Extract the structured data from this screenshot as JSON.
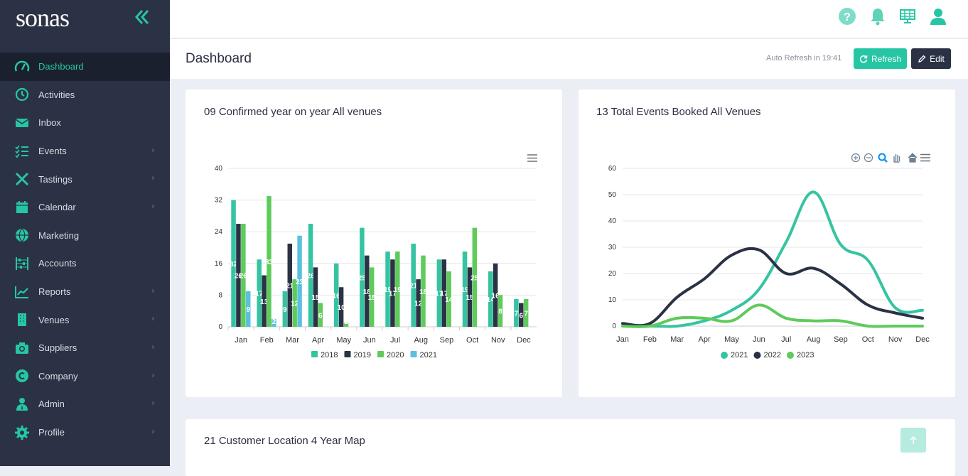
{
  "app": {
    "logo_text": "sonas"
  },
  "colors": {
    "accent": "#26c6a4",
    "sidebar_bg": "#2b3245",
    "dark": "#2b3245",
    "s2018": "#35c4a1",
    "s2019": "#2b3245",
    "s2020": "#5ecb5b",
    "s2021": "#5bc0de"
  },
  "sidebar": {
    "items": [
      {
        "label": "Dashboard",
        "icon": "speedometer-icon",
        "active": true,
        "has_children": false
      },
      {
        "label": "Activities",
        "icon": "history-icon",
        "has_children": false
      },
      {
        "label": "Inbox",
        "icon": "envelope-icon",
        "has_children": false
      },
      {
        "label": "Events",
        "icon": "checklist-icon",
        "has_children": true
      },
      {
        "label": "Tastings",
        "icon": "utensils-icon",
        "has_children": true
      },
      {
        "label": "Calendar",
        "icon": "calendar-icon",
        "has_children": true
      },
      {
        "label": "Marketing",
        "icon": "globe-icon",
        "has_children": false
      },
      {
        "label": "Accounts",
        "icon": "abacus-icon",
        "has_children": false
      },
      {
        "label": "Reports",
        "icon": "chart-line-icon",
        "has_children": true
      },
      {
        "label": "Venues",
        "icon": "building-icon",
        "has_children": true
      },
      {
        "label": "Suppliers",
        "icon": "camera-icon",
        "has_children": true
      },
      {
        "label": "Company",
        "icon": "copyright-icon",
        "has_children": true
      },
      {
        "label": "Admin",
        "icon": "user-tie-icon",
        "has_children": true
      },
      {
        "label": "Profile",
        "icon": "cog-icon",
        "has_children": true
      }
    ]
  },
  "header": {
    "title": "Dashboard",
    "auto_refresh": "Auto Refresh in 19:41",
    "refresh_label": "Refresh",
    "edit_label": "Edit"
  },
  "cards": {
    "bar_title": "09 Confirmed year on year All venues",
    "line_title": "13 Total Events Booked All Venues",
    "map_title": "21 Customer Location 4 Year Map"
  },
  "chart_data": [
    {
      "type": "bar",
      "title": "09 Confirmed year on year All venues",
      "categories": [
        "Jan",
        "Feb",
        "Mar",
        "Apr",
        "May",
        "Jun",
        "Jul",
        "Aug",
        "Sep",
        "Oct",
        "Nov",
        "Dec"
      ],
      "ylim": [
        0,
        40
      ],
      "yticks": [
        0,
        8,
        16,
        24,
        32,
        40
      ],
      "grid": true,
      "legend_position": "bottom",
      "series": [
        {
          "name": "2018",
          "values": [
            32,
            17,
            9,
            26,
            16,
            25,
            19,
            21,
            17,
            19,
            14,
            7
          ]
        },
        {
          "name": "2019",
          "values": [
            26,
            13,
            21,
            15,
            10,
            18,
            17,
            12,
            17,
            15,
            16,
            6
          ]
        },
        {
          "name": "2020",
          "values": [
            26,
            33,
            12,
            6,
            1,
            15,
            19,
            18,
            14,
            25,
            8,
            7
          ]
        },
        {
          "name": "2021",
          "values": [
            9,
            2,
            23,
            0,
            0,
            0,
            0,
            0,
            0,
            0,
            0,
            0
          ]
        }
      ]
    },
    {
      "type": "line",
      "title": "13 Total Events Booked All Venues",
      "categories": [
        "Jan",
        "Feb",
        "Mar",
        "Apr",
        "May",
        "Jun",
        "Jul",
        "Aug",
        "Sep",
        "Oct",
        "Nov",
        "Dec"
      ],
      "ylim": [
        0,
        60
      ],
      "yticks": [
        0,
        10,
        20,
        30,
        40,
        50,
        60
      ],
      "grid": true,
      "legend_position": "bottom",
      "series": [
        {
          "name": "2021",
          "values": [
            0,
            0,
            0,
            2,
            6,
            14,
            32,
            51,
            31,
            25,
            7,
            6
          ]
        },
        {
          "name": "2022",
          "values": [
            1,
            1,
            11,
            18,
            27,
            29,
            20,
            22,
            16,
            8,
            5,
            3
          ]
        },
        {
          "name": "2023",
          "values": [
            0,
            0,
            3,
            3,
            2,
            8,
            3,
            2,
            2,
            0,
            0,
            0
          ]
        }
      ]
    }
  ]
}
